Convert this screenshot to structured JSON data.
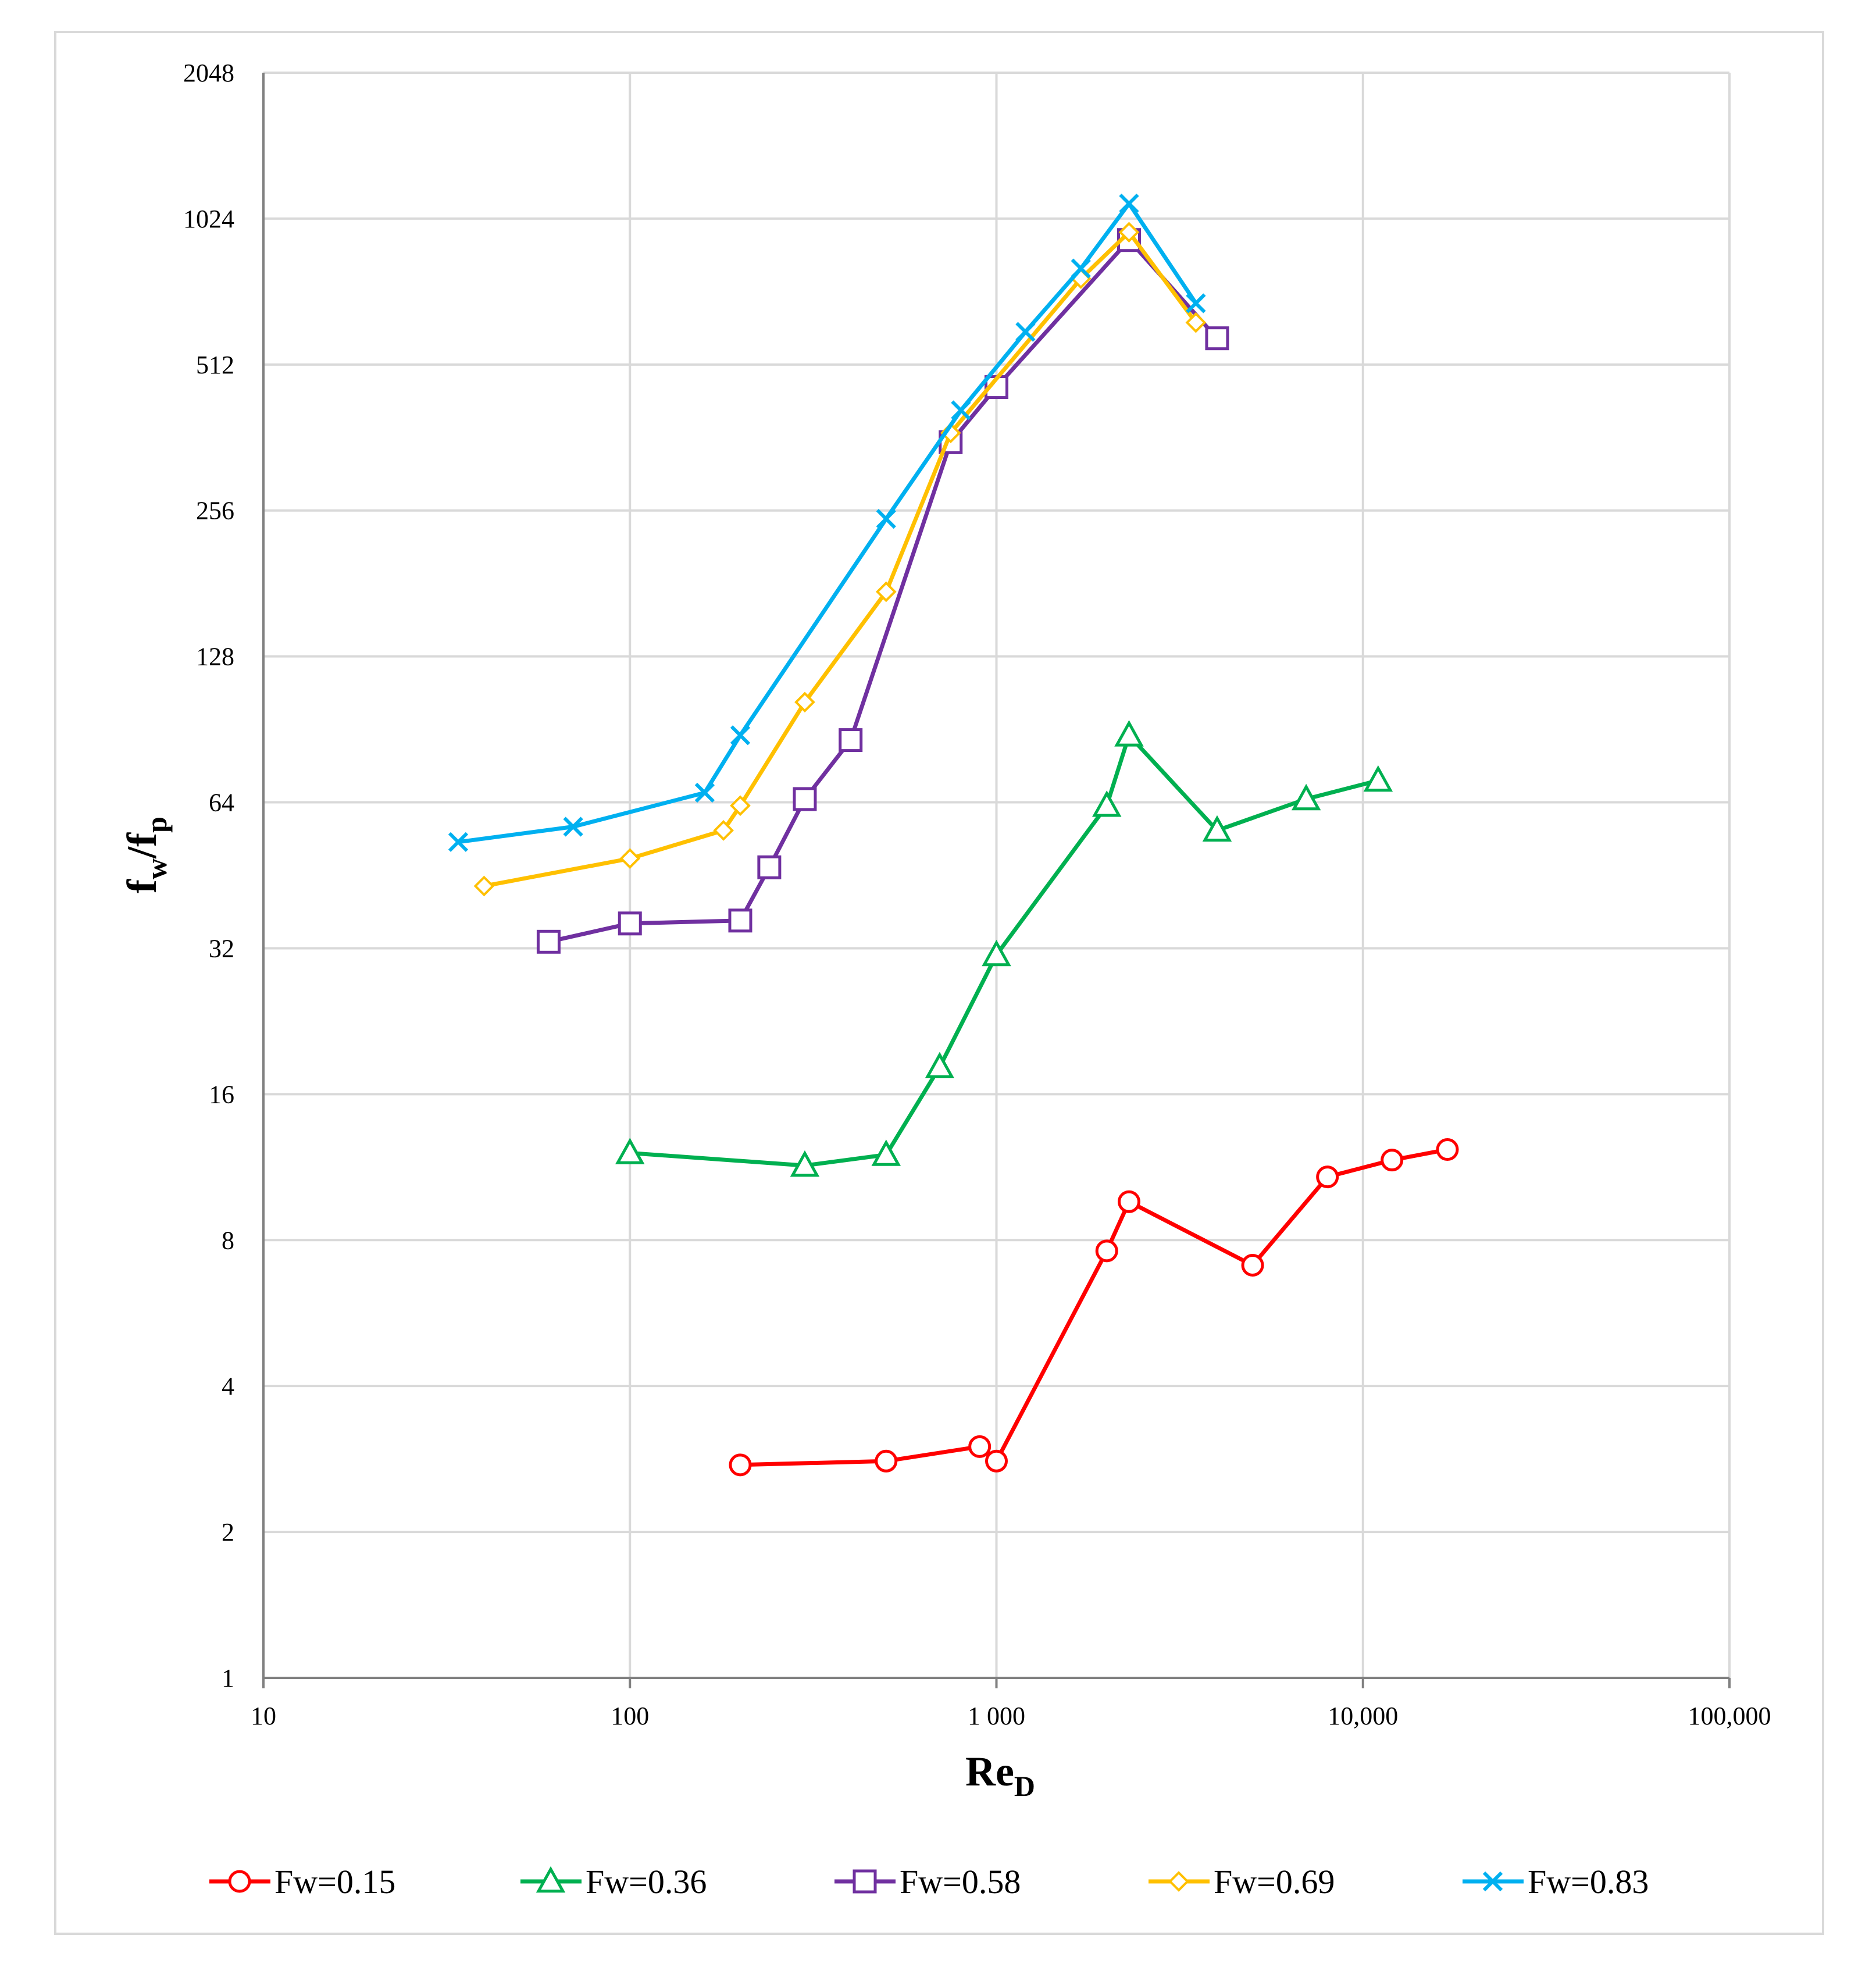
{
  "chart_data": {
    "type": "line",
    "title": "",
    "xlabel": "Re_D",
    "ylabel": "f_w/f_p",
    "xscale": "log10",
    "yscale": "log2",
    "xlim": [
      10,
      100000
    ],
    "ylim": [
      1,
      2048
    ],
    "grid": true,
    "legend_position": "bottom",
    "axis_title": {
      "x_main": "Re",
      "x_sub": "D",
      "y_f1": "f",
      "y_sub1": "w",
      "y_slash": "/f",
      "y_sub2": "p"
    },
    "x_ticks": [
      {
        "value": 10,
        "label": "10"
      },
      {
        "value": 100,
        "label": "100"
      },
      {
        "value": 1000,
        "label": "1 000"
      },
      {
        "value": 10000,
        "label": "10,000"
      },
      {
        "value": 100000,
        "label": "100,000"
      }
    ],
    "y_ticks": [
      {
        "value": 1,
        "label": "1"
      },
      {
        "value": 2,
        "label": "2"
      },
      {
        "value": 4,
        "label": "4"
      },
      {
        "value": 8,
        "label": "8"
      },
      {
        "value": 16,
        "label": "16"
      },
      {
        "value": 32,
        "label": "32"
      },
      {
        "value": 64,
        "label": "64"
      },
      {
        "value": 128,
        "label": "128"
      },
      {
        "value": 256,
        "label": "256"
      },
      {
        "value": 512,
        "label": "512"
      },
      {
        "value": 1024,
        "label": "1024"
      },
      {
        "value": 2048,
        "label": "2048"
      }
    ],
    "series": [
      {
        "name": "Fw=0.15",
        "color": "#ff0000",
        "marker": "circle",
        "x": [
          200,
          500,
          900,
          1000,
          2000,
          2300,
          5000,
          8000,
          12000,
          17000
        ],
        "y": [
          2.75,
          2.8,
          3.0,
          2.8,
          7.6,
          9.6,
          7.1,
          10.8,
          11.7,
          12.3
        ]
      },
      {
        "name": "Fw=0.36",
        "color": "#00b050",
        "marker": "triangle",
        "x": [
          100,
          300,
          500,
          700,
          1000,
          2000,
          2300,
          4000,
          7000,
          11000
        ],
        "y": [
          12.1,
          11.4,
          12.0,
          18.2,
          31.0,
          63.0,
          88.0,
          56.0,
          65.0,
          71.0
        ]
      },
      {
        "name": "Fw=0.58",
        "color": "#7030a0",
        "marker": "square",
        "x": [
          60,
          100,
          200,
          240,
          300,
          400,
          750,
          1000,
          2300,
          4000
        ],
        "y": [
          33.0,
          36.0,
          36.5,
          47.0,
          65.0,
          86.0,
          354,
          460,
          925,
          580
        ]
      },
      {
        "name": "Fw=0.69",
        "color": "#ffc000",
        "marker": "diamond",
        "x": [
          40,
          100,
          180,
          200,
          300,
          500,
          750,
          1700,
          2300,
          3500
        ],
        "y": [
          43.0,
          49.0,
          56.0,
          63.0,
          103,
          174,
          370,
          770,
          960,
          625
        ]
      },
      {
        "name": "Fw=0.83",
        "color": "#00b0f0",
        "marker": "x",
        "x": [
          34,
          70,
          160,
          200,
          500,
          800,
          1200,
          1700,
          2300,
          3500
        ],
        "y": [
          53.0,
          57.0,
          67.0,
          88.0,
          246,
          412,
          598,
          808,
          1100,
          685
        ]
      }
    ]
  }
}
